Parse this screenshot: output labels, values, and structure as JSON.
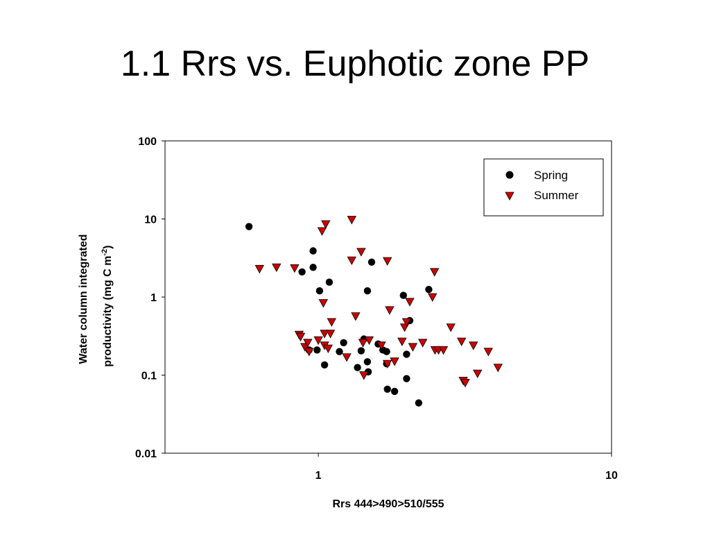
{
  "slide": {
    "title": "1.1 Rrs vs. Euphotic zone PP"
  },
  "chart_data": {
    "type": "scatter",
    "xlabel": "Rrs 444>490>510/555",
    "ylabel_line1": "Water column integrated",
    "ylabel_line2_prefix": "productivity (mg C m",
    "ylabel_sup": "-2",
    "ylabel_line2_suffix": ")",
    "xscale": "log",
    "yscale": "log",
    "xlim": [
      0.3,
      10
    ],
    "ylim": [
      0.01,
      100
    ],
    "xticks": [
      {
        "value": 1,
        "label": "1"
      },
      {
        "value": 10,
        "label": "10"
      }
    ],
    "yticks": [
      {
        "value": 100,
        "label": "100"
      },
      {
        "value": 10,
        "label": "10"
      },
      {
        "value": 1,
        "label": "1"
      },
      {
        "value": 0.1,
        "label": "0.1"
      },
      {
        "value": 0.01,
        "label": "0.01"
      }
    ],
    "legend_position": "top-right",
    "series": [
      {
        "name": "Spring",
        "marker": "circle",
        "color": "#000000",
        "points": [
          [
            0.58,
            8.0
          ],
          [
            0.88,
            2.1
          ],
          [
            0.96,
            3.9
          ],
          [
            0.96,
            2.4
          ],
          [
            1.01,
            1.2
          ],
          [
            1.09,
            1.55
          ],
          [
            0.99,
            0.21
          ],
          [
            0.93,
            0.21
          ],
          [
            1.05,
            0.135
          ],
          [
            1.18,
            0.2
          ],
          [
            1.22,
            0.26
          ],
          [
            1.36,
            0.125
          ],
          [
            1.4,
            0.205
          ],
          [
            1.43,
            0.29
          ],
          [
            1.47,
            1.2
          ],
          [
            1.47,
            0.148
          ],
          [
            1.48,
            0.11
          ],
          [
            1.52,
            2.8
          ],
          [
            1.6,
            0.25
          ],
          [
            1.66,
            0.21
          ],
          [
            1.71,
            0.14
          ],
          [
            1.71,
            0.2
          ],
          [
            1.72,
            0.066
          ],
          [
            1.82,
            0.062
          ],
          [
            1.95,
            1.05
          ],
          [
            2.0,
            0.185
          ],
          [
            2.0,
            0.09
          ],
          [
            2.05,
            0.5
          ],
          [
            2.2,
            0.044
          ],
          [
            2.38,
            1.25
          ]
        ]
      },
      {
        "name": "Summer",
        "marker": "triangle-down",
        "color": "#cc0000",
        "points": [
          [
            0.63,
            2.3
          ],
          [
            0.72,
            2.4
          ],
          [
            0.83,
            2.35
          ],
          [
            0.86,
            0.33
          ],
          [
            0.87,
            0.31
          ],
          [
            0.9,
            0.23
          ],
          [
            0.92,
            0.26
          ],
          [
            0.93,
            0.2
          ],
          [
            1.0,
            0.28
          ],
          [
            1.03,
            7.0
          ],
          [
            1.04,
            0.84
          ],
          [
            1.05,
            0.34
          ],
          [
            1.05,
            0.24
          ],
          [
            1.06,
            8.6
          ],
          [
            1.08,
            0.22
          ],
          [
            1.1,
            0.34
          ],
          [
            1.11,
            0.48
          ],
          [
            1.25,
            0.17
          ],
          [
            1.3,
            9.8
          ],
          [
            1.3,
            2.95
          ],
          [
            1.34,
            0.57
          ],
          [
            1.4,
            3.8
          ],
          [
            1.43,
            0.1
          ],
          [
            1.42,
            0.26
          ],
          [
            1.49,
            0.28
          ],
          [
            1.64,
            0.24
          ],
          [
            1.72,
            0.14
          ],
          [
            1.72,
            2.9
          ],
          [
            1.75,
            0.68
          ],
          [
            1.82,
            0.15
          ],
          [
            1.93,
            0.27
          ],
          [
            1.97,
            0.41
          ],
          [
            2.0,
            0.48
          ],
          [
            2.05,
            0.87
          ],
          [
            2.1,
            0.23
          ],
          [
            2.27,
            0.26
          ],
          [
            2.45,
            1.0
          ],
          [
            2.49,
            2.1
          ],
          [
            2.5,
            0.21
          ],
          [
            2.57,
            0.21
          ],
          [
            2.67,
            0.21
          ],
          [
            2.83,
            0.41
          ],
          [
            3.08,
            0.27
          ],
          [
            3.12,
            0.085
          ],
          [
            3.17,
            0.08
          ],
          [
            3.38,
            0.24
          ],
          [
            3.49,
            0.105
          ],
          [
            3.8,
            0.2
          ],
          [
            4.1,
            0.125
          ]
        ]
      }
    ]
  }
}
